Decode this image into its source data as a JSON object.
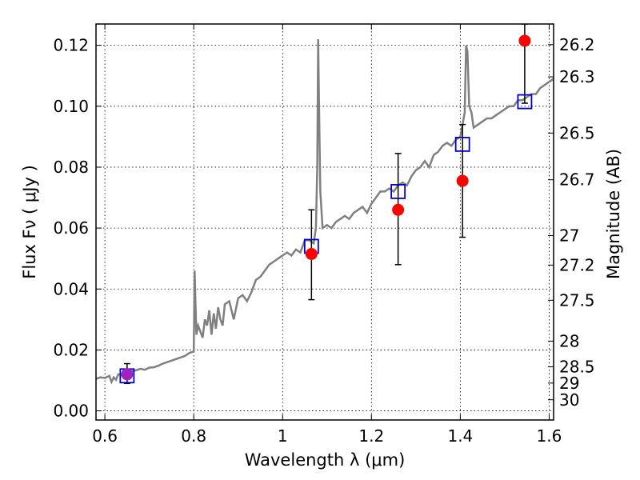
{
  "chart_data": {
    "type": "scatter",
    "xlabel": "Wavelength  λ (μm)",
    "ylabel": "Flux  Fν  ( μJy )",
    "y2label": "Magnitude (AB)",
    "xlim": [
      0.58,
      1.61
    ],
    "ylim": [
      -0.003,
      0.127
    ],
    "grid": true,
    "x_ticks": [
      {
        "value": 0.6,
        "label": "0.6"
      },
      {
        "value": 0.8,
        "label": "0.8"
      },
      {
        "value": 1.0,
        "label": "1"
      },
      {
        "value": 1.2,
        "label": "1.2"
      },
      {
        "value": 1.4,
        "label": "1.4"
      },
      {
        "value": 1.6,
        "label": "1.6"
      }
    ],
    "y_ticks": [
      {
        "value": 0.0,
        "label": "0.00"
      },
      {
        "value": 0.02,
        "label": "0.02"
      },
      {
        "value": 0.04,
        "label": "0.04"
      },
      {
        "value": 0.06,
        "label": "0.06"
      },
      {
        "value": 0.08,
        "label": "0.08"
      },
      {
        "value": 0.1,
        "label": "0.10"
      },
      {
        "value": 0.12,
        "label": "0.12"
      }
    ],
    "y2_ticks": [
      {
        "mag": 26.2,
        "label": "26.2"
      },
      {
        "mag": 26.3,
        "label": "26.3"
      },
      {
        "mag": 26.5,
        "label": "26.5"
      },
      {
        "mag": 26.7,
        "label": "26.7"
      },
      {
        "mag": 27.0,
        "label": "27"
      },
      {
        "mag": 27.2,
        "label": "27.2"
      },
      {
        "mag": 27.5,
        "label": "27.5"
      },
      {
        "mag": 28.0,
        "label": "28"
      },
      {
        "mag": 28.5,
        "label": "28.5"
      },
      {
        "mag": 29.0,
        "label": "29"
      },
      {
        "mag": 30.0,
        "label": "30"
      }
    ],
    "model_spectrum": {
      "color": "#808080",
      "x": [
        0.58,
        0.59,
        0.6,
        0.61,
        0.615,
        0.62,
        0.625,
        0.63,
        0.64,
        0.65,
        0.66,
        0.67,
        0.68,
        0.69,
        0.7,
        0.71,
        0.72,
        0.73,
        0.74,
        0.75,
        0.76,
        0.77,
        0.78,
        0.79,
        0.8,
        0.802,
        0.804,
        0.806,
        0.81,
        0.815,
        0.82,
        0.825,
        0.83,
        0.835,
        0.84,
        0.845,
        0.85,
        0.855,
        0.86,
        0.865,
        0.87,
        0.88,
        0.89,
        0.9,
        0.91,
        0.92,
        0.93,
        0.94,
        0.95,
        0.96,
        0.97,
        0.98,
        0.99,
        1.0,
        1.01,
        1.02,
        1.03,
        1.04,
        1.05,
        1.06,
        1.07,
        1.075,
        1.078,
        1.08,
        1.082,
        1.085,
        1.09,
        1.1,
        1.11,
        1.12,
        1.13,
        1.14,
        1.15,
        1.16,
        1.17,
        1.18,
        1.19,
        1.2,
        1.21,
        1.22,
        1.23,
        1.24,
        1.25,
        1.26,
        1.27,
        1.28,
        1.29,
        1.3,
        1.31,
        1.32,
        1.33,
        1.34,
        1.35,
        1.36,
        1.37,
        1.38,
        1.39,
        1.4,
        1.405,
        1.41,
        1.413,
        1.416,
        1.42,
        1.425,
        1.43,
        1.44,
        1.45,
        1.46,
        1.47,
        1.48,
        1.49,
        1.5,
        1.51,
        1.52,
        1.53,
        1.54,
        1.55,
        1.56,
        1.57,
        1.58,
        1.59,
        1.6,
        1.61
      ],
      "y": [
        0.0105,
        0.011,
        0.0108,
        0.0115,
        0.0095,
        0.011,
        0.0102,
        0.012,
        0.0118,
        0.0125,
        0.013,
        0.0133,
        0.0138,
        0.0135,
        0.0142,
        0.0143,
        0.0148,
        0.0155,
        0.016,
        0.0165,
        0.017,
        0.0175,
        0.018,
        0.019,
        0.0195,
        0.046,
        0.035,
        0.025,
        0.028,
        0.026,
        0.024,
        0.03,
        0.028,
        0.033,
        0.025,
        0.032,
        0.027,
        0.034,
        0.03,
        0.028,
        0.035,
        0.036,
        0.03,
        0.037,
        0.038,
        0.036,
        0.039,
        0.043,
        0.044,
        0.046,
        0.048,
        0.049,
        0.05,
        0.051,
        0.052,
        0.051,
        0.053,
        0.052,
        0.056,
        0.056,
        0.055,
        0.06,
        0.08,
        0.122,
        0.1,
        0.072,
        0.06,
        0.061,
        0.06,
        0.062,
        0.063,
        0.064,
        0.063,
        0.065,
        0.066,
        0.067,
        0.065,
        0.068,
        0.07,
        0.072,
        0.072,
        0.073,
        0.072,
        0.074,
        0.075,
        0.074,
        0.077,
        0.079,
        0.08,
        0.082,
        0.08,
        0.084,
        0.085,
        0.087,
        0.088,
        0.087,
        0.089,
        0.09,
        0.094,
        0.098,
        0.12,
        0.118,
        0.1,
        0.098,
        0.093,
        0.094,
        0.095,
        0.096,
        0.096,
        0.097,
        0.098,
        0.099,
        0.1,
        0.1,
        0.102,
        0.102,
        0.103,
        0.104,
        0.104,
        0.106,
        0.107,
        0.108,
        0.109
      ]
    },
    "model_points": {
      "color": "#0000cc",
      "x": [
        0.65,
        1.065,
        1.26,
        1.405,
        1.545
      ],
      "y": [
        0.0115,
        0.054,
        0.072,
        0.0875,
        0.1015
      ]
    },
    "observed_points": {
      "color": "#ff0000",
      "first_color": "#a020c0",
      "x": [
        0.65,
        1.065,
        1.26,
        1.405,
        1.545
      ],
      "y": [
        0.012,
        0.0515,
        0.066,
        0.0755,
        0.1215
      ],
      "err_low": [
        0.009,
        0.0365,
        0.048,
        0.057,
        0.101
      ],
      "err_high": [
        0.0155,
        0.066,
        0.0845,
        0.094,
        0.127
      ]
    }
  }
}
